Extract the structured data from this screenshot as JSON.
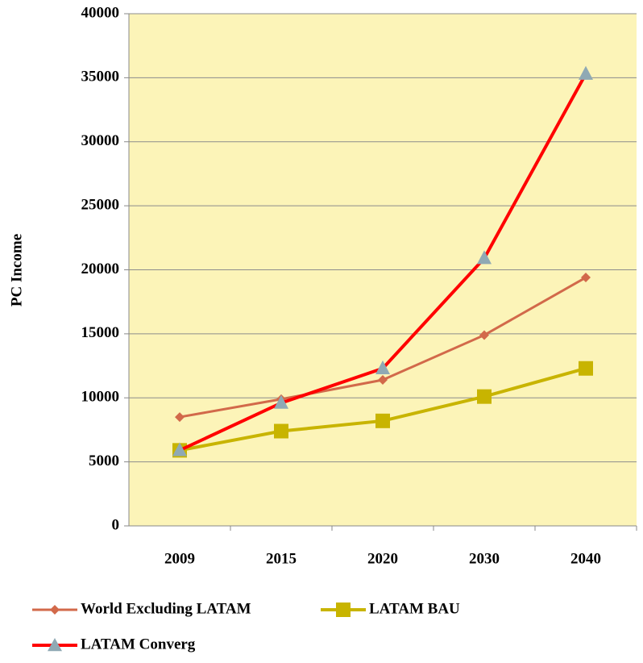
{
  "chart_data": {
    "type": "line",
    "y_label": "PC Income",
    "categories": [
      "2009",
      "2015",
      "2020",
      "2030",
      "2040"
    ],
    "series": [
      {
        "name": "World Excluding LATAM",
        "color": "#d2694a",
        "marker": "diamond",
        "values": [
          8500,
          9900,
          11400,
          14900,
          19400
        ]
      },
      {
        "name": "LATAM BAU",
        "color": "#c8b400",
        "marker": "square",
        "values": [
          5900,
          7400,
          8200,
          10100,
          12300
        ]
      },
      {
        "name": "LATAM Converg",
        "color": "#ff0000",
        "marker": "triangle",
        "marker_color": "#8fa9b4",
        "values": [
          5900,
          9600,
          12300,
          20900,
          35300
        ]
      }
    ],
    "ylim": [
      0,
      40000
    ],
    "yticks": [
      0,
      5000,
      10000,
      15000,
      20000,
      25000,
      30000,
      35000,
      40000
    ],
    "grid": true,
    "plot_background": "#fcf4b8"
  }
}
